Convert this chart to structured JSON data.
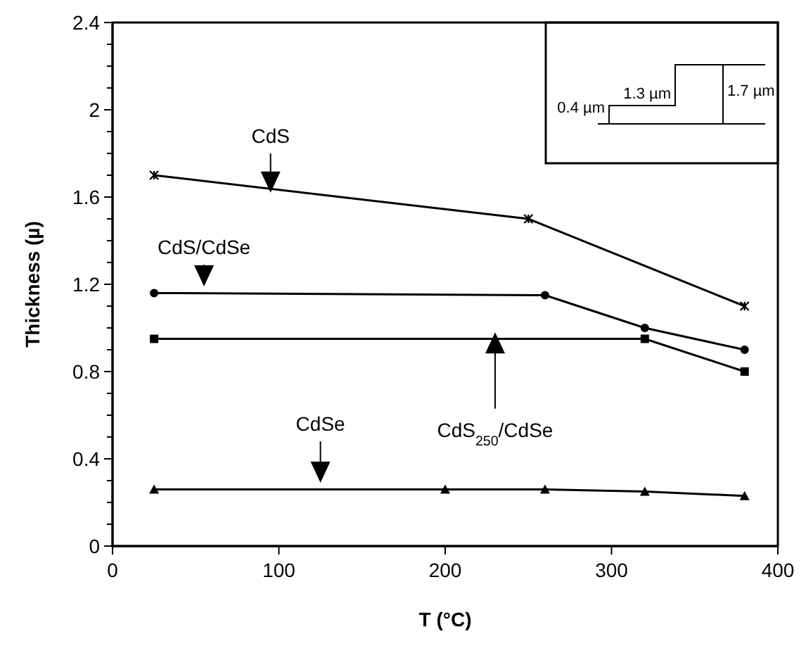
{
  "chart_data": {
    "type": "line",
    "xlabel": "T (°C)",
    "ylabel": "Thickness (µ)",
    "xlim": [
      0,
      400
    ],
    "xticks": [
      0,
      100,
      200,
      300,
      400
    ],
    "ylim": [
      0,
      2.4
    ],
    "yticks": [
      0,
      {
        "value": 0.1,
        "label": null
      },
      {
        "value": 0.2,
        "label": null
      },
      {
        "value": 0.3,
        "label": null
      },
      0.4,
      {
        "value": 0.5,
        "label": null
      },
      {
        "value": 0.6,
        "label": null
      },
      {
        "value": 0.7,
        "label": null
      },
      0.8,
      {
        "value": 0.9,
        "label": null
      },
      {
        "value": 1,
        "label": null
      },
      {
        "value": 1.1,
        "label": null
      },
      1.2,
      {
        "value": 1.3,
        "label": null
      },
      {
        "value": 1.4,
        "label": null
      },
      {
        "value": 1.5,
        "label": null
      },
      1.6,
      {
        "value": 1.7,
        "label": null
      },
      {
        "value": 1.8,
        "label": null
      },
      {
        "value": 1.9,
        "label": null
      },
      2,
      {
        "value": 2.1,
        "label": null
      },
      {
        "value": 2.2,
        "label": null
      },
      {
        "value": 2.3,
        "label": null
      },
      2.4
    ],
    "grid": false,
    "line_style": "solid",
    "series": [
      {
        "name": "CdS",
        "color": "#000000",
        "marker": "cross",
        "x": [
          25,
          250,
          380
        ],
        "values": [
          1.7,
          1.5,
          1.1
        ]
      },
      {
        "name": "CdS/CdSe",
        "color": "#000000",
        "marker": "circle",
        "x": [
          25,
          260,
          320,
          380
        ],
        "values": [
          1.16,
          1.15,
          1.0,
          0.9
        ]
      },
      {
        "name": "CdS$_{250}$/CdSe",
        "color": "#000000",
        "marker": "square",
        "x": [
          25,
          320,
          380
        ],
        "values": [
          0.95,
          0.95,
          0.8
        ]
      },
      {
        "name": "CdSe",
        "color": "#000000",
        "marker": "triangle",
        "x": [
          25,
          200,
          260,
          320,
          380
        ],
        "values": [
          0.26,
          0.26,
          0.26,
          0.25,
          0.23
        ]
      }
    ],
    "annotations": [
      "0.4 µm",
      "1.3 µm",
      "1.7 µm"
    ]
  }
}
